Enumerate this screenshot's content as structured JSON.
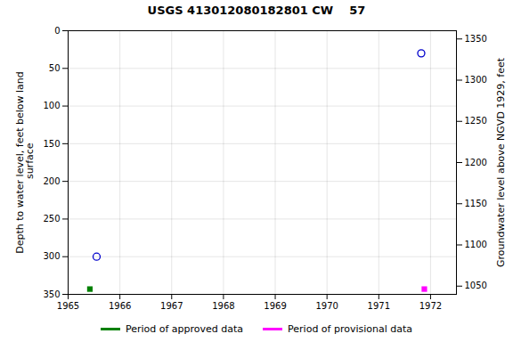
{
  "chart_data": {
    "type": "scatter",
    "title": "USGS 413012080182801 CW    57",
    "xlim": [
      1965.0,
      1972.5
    ],
    "xticks": [
      1965,
      1966,
      1967,
      1968,
      1969,
      1970,
      1971,
      1972
    ],
    "ylim": [
      350,
      0
    ],
    "yticks": [
      0,
      50,
      100,
      150,
      200,
      250,
      300,
      350
    ],
    "y2lim": [
      1040,
      1360
    ],
    "y2ticks": [
      1050,
      1100,
      1150,
      1200,
      1250,
      1300,
      1350
    ],
    "ylabel": "Depth to water level, feet below land\n surface",
    "y2label": "Groundwater level above NGVD 1929, feet",
    "grid": true,
    "legend": "bottom",
    "series": [
      {
        "x": [
          1965.55,
          1971.82
        ],
        "values": [
          300,
          30
        ],
        "color": "#0000cc",
        "marker": "circle"
      },
      {
        "name": "Period of approved data",
        "x": [
          1965.42
        ],
        "values": [
          343
        ],
        "color": "#008000",
        "marker": "square"
      },
      {
        "name": "Period of provisional data",
        "x": [
          1971.88
        ],
        "values": [
          343
        ],
        "color": "#ff00ff",
        "marker": "square"
      }
    ]
  }
}
